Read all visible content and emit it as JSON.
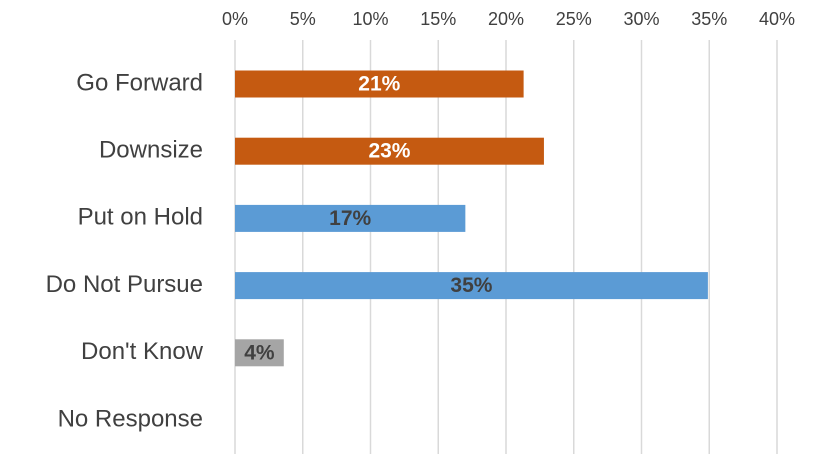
{
  "chart_data": {
    "type": "hbar",
    "categories": [
      "Go Forward",
      "Downsize",
      "Put on Hold",
      "Do Not Pursue",
      "Don't Know",
      "No Response"
    ],
    "values": [
      21.3,
      22.8,
      17,
      34.9,
      3.6,
      0
    ],
    "value_labels": [
      "21%",
      "23%",
      "17%",
      "35%",
      "4%",
      null
    ],
    "colors": [
      "#c55a11",
      "#c55a11",
      "#5b9bd5",
      "#5b9bd5",
      "#a5a5a5",
      "#a5a5a5"
    ],
    "value_label_colors": [
      "#ffffff",
      "#ffffff",
      "#404040",
      "#404040",
      "#404040",
      "#404040"
    ],
    "xlim": [
      0,
      40
    ],
    "xticks": [
      {
        "value": 0,
        "label": "0%"
      },
      {
        "value": 5,
        "label": "5%"
      },
      {
        "value": 10,
        "label": "10%"
      },
      {
        "value": 15,
        "label": "15%"
      },
      {
        "value": 20,
        "label": "20%"
      },
      {
        "value": 25,
        "label": "25%"
      },
      {
        "value": 30,
        "label": "30%"
      },
      {
        "value": 35,
        "label": "35%"
      },
      {
        "value": 40,
        "label": "40%"
      }
    ],
    "grid": true
  }
}
